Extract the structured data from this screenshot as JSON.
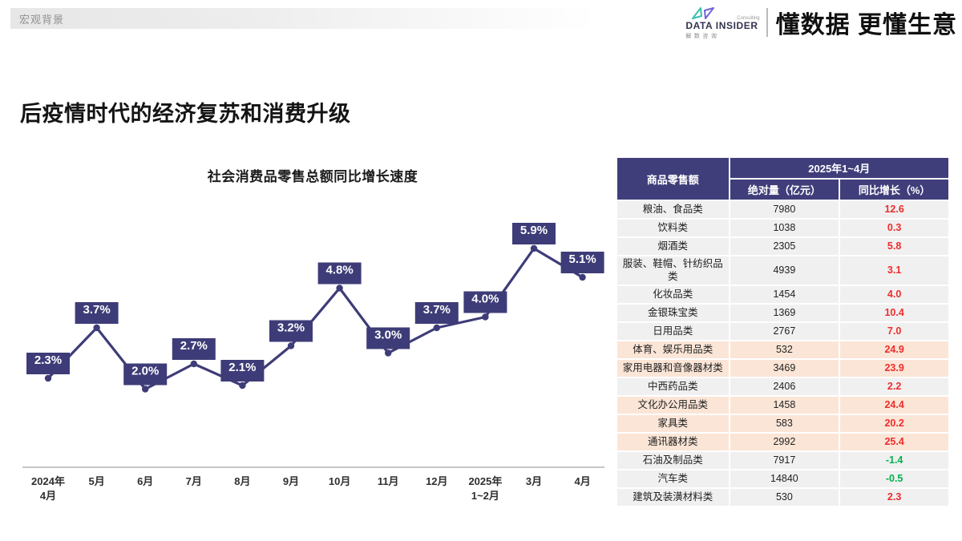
{
  "page": {
    "section_label": "宏观背景",
    "title": "后疫情时代的经济复苏和消费升级"
  },
  "brand": {
    "logo_name": "DATA INSIDER",
    "logo_consulting": "Consulting",
    "logo_cn": "解数咨询",
    "slogan": "懂数据 更懂生意",
    "mark_teal": "#3bbfae",
    "mark_purple": "#7163d8"
  },
  "chart_data": {
    "type": "line",
    "title": "社会消费品零售总额同比增长速度",
    "categories": [
      [
        "2024年",
        "4月"
      ],
      [
        "5月"
      ],
      [
        "6月"
      ],
      [
        "7月"
      ],
      [
        "8月"
      ],
      [
        "9月"
      ],
      [
        "10月"
      ],
      [
        "11月"
      ],
      [
        "12月"
      ],
      [
        "2025年",
        "1~2月"
      ],
      [
        "3月"
      ],
      [
        "4月"
      ]
    ],
    "values": [
      2.3,
      3.7,
      2.0,
      2.7,
      2.1,
      3.2,
      4.8,
      3.0,
      3.7,
      4.0,
      5.9,
      5.1
    ],
    "point_labels": [
      "2.3%",
      "3.7%",
      "2.0%",
      "2.7%",
      "2.1%",
      "3.2%",
      "4.8%",
      "3.0%",
      "3.7%",
      "4.0%",
      "5.9%",
      "5.1%"
    ],
    "unit": "%",
    "line_color": "#3e3c78",
    "label_box_color": "#3e3c78",
    "label_text_color": "#ffffff",
    "axis_color": "#b3b3b3",
    "grid": false,
    "legend": false,
    "ylim": [
      0,
      7
    ]
  },
  "table": {
    "header": {
      "col_category": "商品零售额",
      "period": "2025年1~4月",
      "col_absolute": "绝对量（亿元）",
      "col_growth": "同比增长（%）"
    },
    "colors": {
      "header_bg": "#403e7a",
      "row_bg": "#f0f0f0",
      "highlight_bg": "#fbe5d6",
      "growth_positive": "#ee2c2c",
      "growth_negative": "#00b050"
    },
    "rows": [
      {
        "name": "粮油、食品类",
        "absolute": "7980",
        "growth": "12.6",
        "highlight": false
      },
      {
        "name": "饮料类",
        "absolute": "1038",
        "growth": "0.3",
        "highlight": false
      },
      {
        "name": "烟酒类",
        "absolute": "2305",
        "growth": "5.8",
        "highlight": false
      },
      {
        "name": "服装、鞋帽、针纺织品类",
        "absolute": "4939",
        "growth": "3.1",
        "highlight": false
      },
      {
        "name": "化妆品类",
        "absolute": "1454",
        "growth": "4.0",
        "highlight": false
      },
      {
        "name": "金银珠宝类",
        "absolute": "1369",
        "growth": "10.4",
        "highlight": false
      },
      {
        "name": "日用品类",
        "absolute": "2767",
        "growth": "7.0",
        "highlight": false
      },
      {
        "name": "体育、娱乐用品类",
        "absolute": "532",
        "growth": "24.9",
        "highlight": true
      },
      {
        "name": "家用电器和音像器材类",
        "absolute": "3469",
        "growth": "23.9",
        "highlight": true
      },
      {
        "name": "中西药品类",
        "absolute": "2406",
        "growth": "2.2",
        "highlight": false
      },
      {
        "name": "文化办公用品类",
        "absolute": "1458",
        "growth": "24.4",
        "highlight": true
      },
      {
        "name": "家具类",
        "absolute": "583",
        "growth": "20.2",
        "highlight": true
      },
      {
        "name": "通讯器材类",
        "absolute": "2992",
        "growth": "25.4",
        "highlight": true
      },
      {
        "name": "石油及制品类",
        "absolute": "7917",
        "growth": "-1.4",
        "highlight": false
      },
      {
        "name": "汽车类",
        "absolute": "14840",
        "growth": "-0.5",
        "highlight": false
      },
      {
        "name": "建筑及装潢材料类",
        "absolute": "530",
        "growth": "2.3",
        "highlight": false
      }
    ]
  }
}
